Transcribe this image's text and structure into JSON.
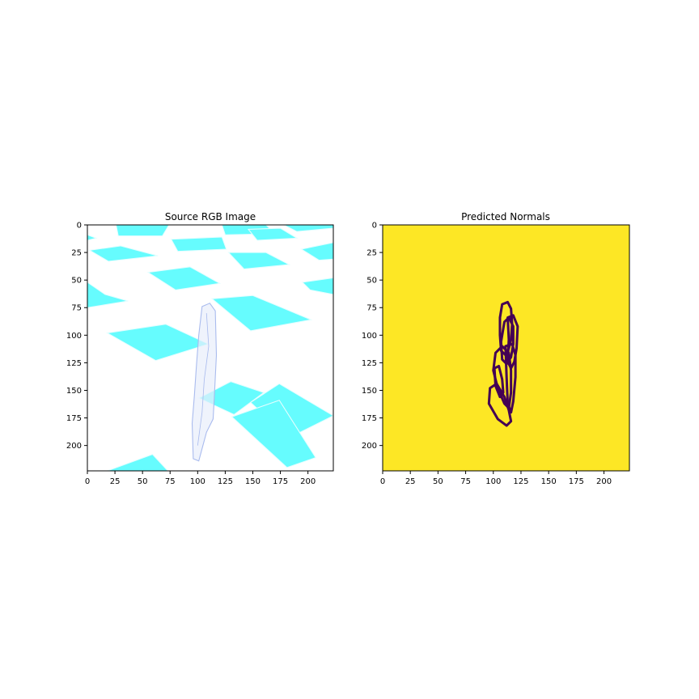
{
  "panels": [
    {
      "title": "Source RGB Image",
      "colors": {
        "background": "#ffffff",
        "tile": "#66fcfe",
        "tile_edge": "#e6feff",
        "figure": "#a9bbee"
      }
    },
    {
      "title": "Predicted Normals",
      "colors": {
        "background": "#fde725",
        "contour": "#440154"
      }
    }
  ],
  "chart_data": [
    {
      "type": "image",
      "title": "Source RGB Image",
      "xlim": [
        0,
        223
      ],
      "ylim": [
        223,
        0
      ],
      "x_ticks": [
        0,
        25,
        50,
        75,
        100,
        125,
        150,
        175,
        200
      ],
      "y_ticks": [
        0,
        25,
        50,
        75,
        100,
        125,
        150,
        175,
        200
      ],
      "tiles": [
        [
          [
            26,
            0
          ],
          [
            74,
            0
          ],
          [
            68,
            10
          ],
          [
            28,
            10
          ]
        ],
        [
          [
            122,
            0
          ],
          [
            162,
            0
          ],
          [
            170,
            8
          ],
          [
            125,
            9
          ]
        ],
        [
          [
            178,
            0
          ],
          [
            223,
            0
          ],
          [
            223,
            3
          ],
          [
            190,
            6
          ]
        ],
        [
          [
            0,
            9
          ],
          [
            8,
            12
          ],
          [
            0,
            14
          ]
        ],
        [
          [
            76,
            13
          ],
          [
            122,
            11
          ],
          [
            126,
            22
          ],
          [
            82,
            24
          ]
        ],
        [
          [
            146,
            4
          ],
          [
            175,
            3
          ],
          [
            190,
            12
          ],
          [
            154,
            14
          ]
        ],
        [
          [
            2,
            23
          ],
          [
            30,
            19
          ],
          [
            64,
            28
          ],
          [
            19,
            33
          ]
        ],
        [
          [
            128,
            25
          ],
          [
            162,
            25
          ],
          [
            183,
            36
          ],
          [
            142,
            40
          ]
        ],
        [
          [
            194,
            22
          ],
          [
            223,
            16
          ],
          [
            223,
            31
          ],
          [
            210,
            32
          ]
        ],
        [
          [
            55,
            43
          ],
          [
            93,
            38
          ],
          [
            120,
            53
          ],
          [
            80,
            59
          ]
        ],
        [
          [
            195,
            52
          ],
          [
            223,
            48
          ],
          [
            223,
            63
          ],
          [
            202,
            59
          ]
        ],
        [
          [
            0,
            52
          ],
          [
            16,
            63
          ],
          [
            37,
            69
          ],
          [
            0,
            75
          ]
        ],
        [
          [
            113,
            67
          ],
          [
            150,
            64
          ],
          [
            203,
            86
          ],
          [
            148,
            96
          ]
        ],
        [
          [
            18,
            98
          ],
          [
            71,
            90
          ],
          [
            110,
            108
          ],
          [
            62,
            123
          ]
        ],
        [
          [
            101,
            157
          ],
          [
            130,
            142
          ],
          [
            160,
            152
          ],
          [
            133,
            172
          ]
        ],
        [
          [
            148,
            161
          ],
          [
            174,
            144
          ],
          [
            223,
            173
          ],
          [
            183,
            193
          ]
        ],
        [
          [
            131,
            174
          ],
          [
            174,
            159
          ],
          [
            207,
            211
          ],
          [
            181,
            220
          ]
        ],
        [
          [
            18,
            223
          ],
          [
            59,
            208
          ],
          [
            73,
            223
          ]
        ]
      ],
      "figure": [
        [
          104,
          74
        ],
        [
          111,
          71
        ],
        [
          116,
          78
        ],
        [
          117,
          118
        ],
        [
          115,
          158
        ],
        [
          114,
          176
        ],
        [
          108,
          188
        ],
        [
          101,
          214
        ],
        [
          96,
          212
        ],
        [
          95,
          180
        ],
        [
          97,
          155
        ],
        [
          99,
          126
        ],
        [
          101,
          100
        ]
      ]
    },
    {
      "type": "heatmap",
      "title": "Predicted Normals",
      "xlim": [
        0,
        223
      ],
      "ylim": [
        223,
        0
      ],
      "x_ticks": [
        0,
        25,
        50,
        75,
        100,
        125,
        150,
        175,
        200
      ],
      "y_ticks": [
        0,
        25,
        50,
        75,
        100,
        125,
        150,
        175,
        200
      ],
      "contours": [
        [
          [
            108,
            72
          ],
          [
            113,
            70
          ],
          [
            116,
            76
          ],
          [
            117,
            90
          ],
          [
            116,
            104
          ],
          [
            114,
            112
          ],
          [
            111,
            118
          ],
          [
            107,
            114
          ],
          [
            106,
            100
          ],
          [
            106,
            84
          ]
        ],
        [
          [
            110,
            88
          ],
          [
            114,
            84
          ],
          [
            118,
            92
          ],
          [
            118,
            108
          ],
          [
            116,
            120
          ],
          [
            112,
            126
          ],
          [
            108,
            122
          ],
          [
            107,
            106
          ]
        ],
        [
          [
            113,
            84
          ],
          [
            118,
            82
          ],
          [
            122,
            92
          ],
          [
            121,
            112
          ],
          [
            119,
            124
          ],
          [
            116,
            130
          ],
          [
            113,
            124
          ],
          [
            114,
            104
          ]
        ],
        [
          [
            102,
            116
          ],
          [
            108,
            110
          ],
          [
            114,
            116
          ],
          [
            116,
            132
          ],
          [
            116,
            152
          ],
          [
            114,
            166
          ],
          [
            110,
            162
          ],
          [
            104,
            148
          ],
          [
            100,
            132
          ]
        ],
        [
          [
            111,
            110
          ],
          [
            117,
            108
          ],
          [
            120,
            118
          ],
          [
            120,
            138
          ],
          [
            118,
            160
          ],
          [
            116,
            170
          ],
          [
            113,
            162
          ],
          [
            112,
            138
          ]
        ],
        [
          [
            97,
            148
          ],
          [
            103,
            144
          ],
          [
            110,
            156
          ],
          [
            114,
            168
          ],
          [
            116,
            178
          ],
          [
            112,
            182
          ],
          [
            104,
            176
          ],
          [
            96,
            162
          ]
        ],
        [
          [
            101,
            130
          ],
          [
            105,
            128
          ],
          [
            108,
            140
          ],
          [
            109,
            152
          ],
          [
            106,
            156
          ],
          [
            102,
            146
          ]
        ]
      ]
    }
  ]
}
